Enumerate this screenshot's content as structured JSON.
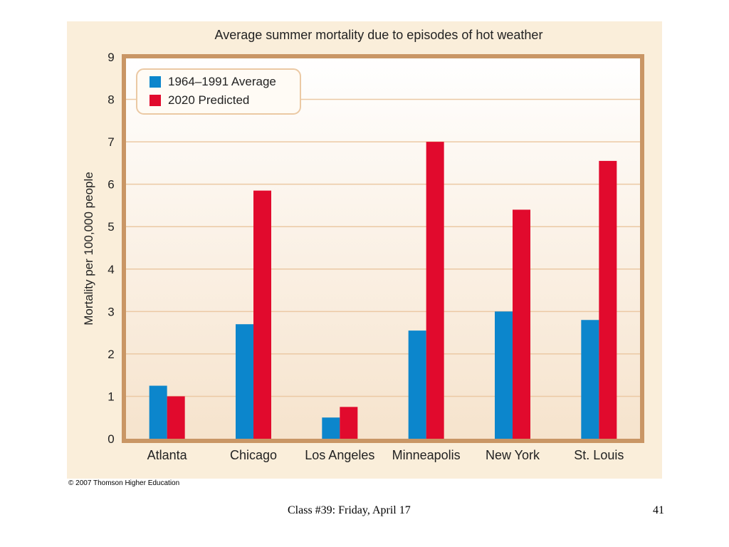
{
  "chart_data": {
    "type": "bar",
    "title": "Average summer mortality due to episodes of hot weather",
    "ylabel": "Mortality per 100,000 people",
    "xlabel": "",
    "categories": [
      "Atlanta",
      "Chicago",
      "Los Angeles",
      "Minneapolis",
      "New York",
      "St. Louis"
    ],
    "series": [
      {
        "name": "1964–1991 Average",
        "values": [
          1.25,
          2.7,
          0.5,
          2.55,
          3.0,
          2.8
        ]
      },
      {
        "name": "2020 Predicted",
        "values": [
          1.0,
          5.85,
          0.75,
          7.0,
          5.4,
          6.55
        ]
      }
    ],
    "ylim": [
      0,
      9
    ],
    "yticks": [
      "0",
      "1",
      "2",
      "3",
      "4",
      "5",
      "6",
      "7",
      "8",
      "9"
    ],
    "grid": true,
    "legend_position": "top-left"
  },
  "colors": {
    "series_1": "#0C86CC",
    "series_2": "#E10A2D",
    "panel_background": "#FAEEDA",
    "frame": "#C99665",
    "gridline": "#EBC9A4"
  },
  "copyright": "© 2007 Thomson Higher Education",
  "footer": {
    "class_label": "Class #39: Friday, April 17",
    "page_number": "41"
  }
}
